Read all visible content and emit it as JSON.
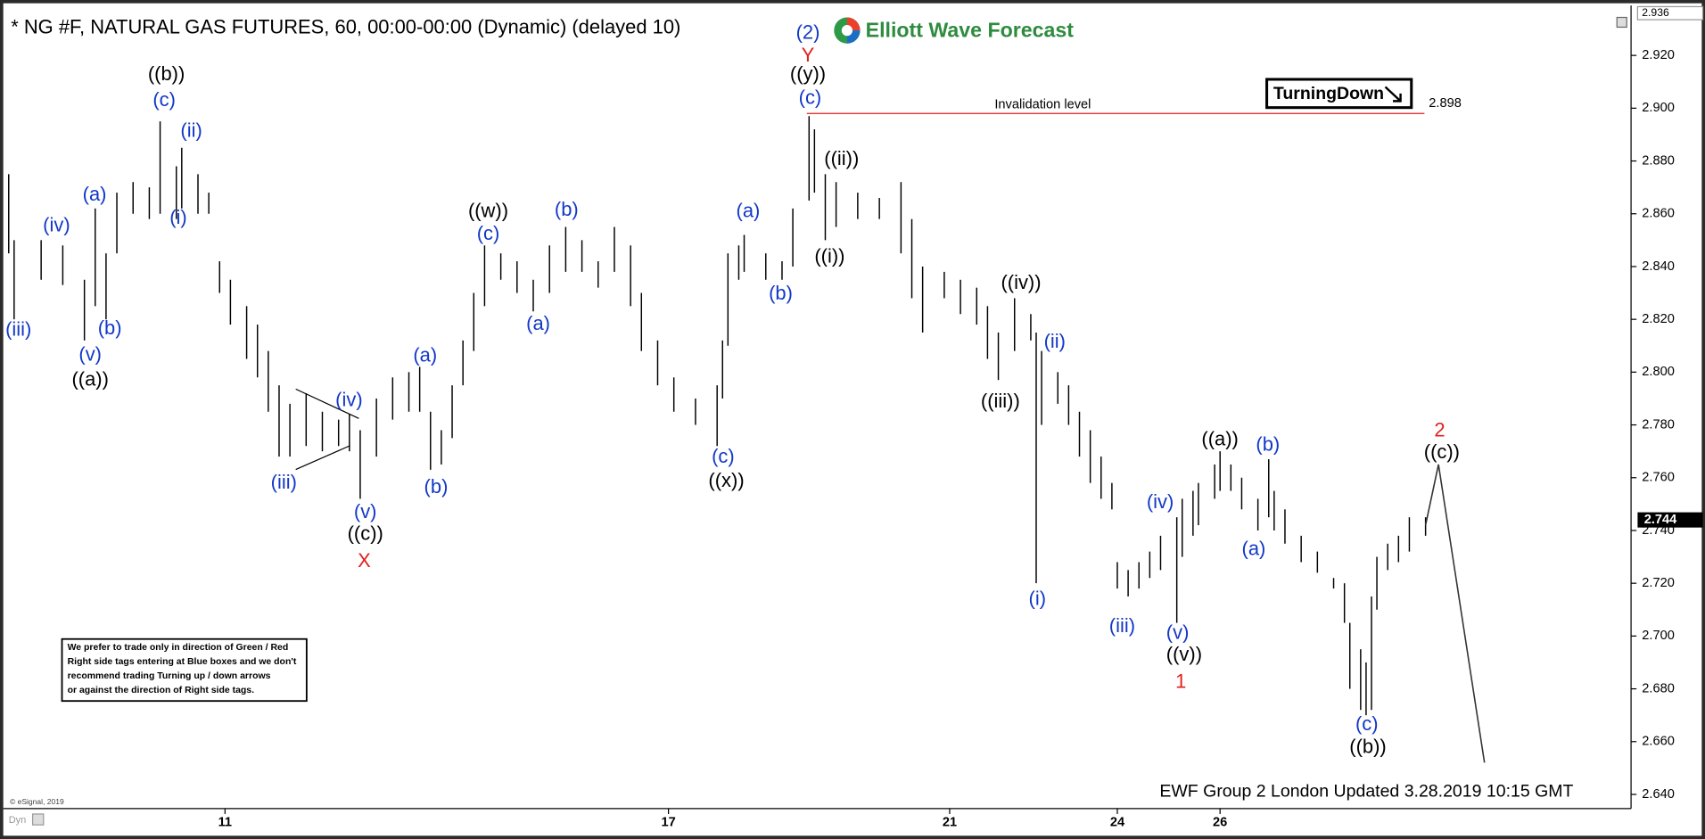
{
  "chart_data": {
    "type": "ohlc",
    "title": "* NG #F, NATURAL GAS FUTURES, 60, 00:00-00:00 (Dynamic) (delayed 10)",
    "logo": "Elliott Wave Forecast",
    "tag": "TurningDown",
    "footer": "EWF Group 2 London Updated 3.28.2019 10:15 GMT",
    "copyright": "© eSignal, 2019",
    "dyn": "Dyn",
    "disclaimer": [
      "We prefer to trade only in direction of Green / Red",
      "Right side tags entering at Blue boxes and we don't",
      "recommend trading Turning up / down arrows",
      "or against the direction of Right side tags."
    ],
    "xlim": [
      0,
      300
    ],
    "xticks": [
      {
        "value": 40,
        "label": "11"
      },
      {
        "value": 122,
        "label": "17"
      },
      {
        "value": 174,
        "label": "21"
      },
      {
        "value": 205,
        "label": "24"
      },
      {
        "value": 224,
        "label": "26"
      }
    ],
    "ylim": [
      2.635,
      2.937
    ],
    "yticks": [
      {
        "value": 2.64,
        "label": "2.640"
      },
      {
        "value": 2.66,
        "label": "2.660"
      },
      {
        "value": 2.68,
        "label": "2.680"
      },
      {
        "value": 2.7,
        "label": "2.700"
      },
      {
        "value": 2.72,
        "label": "2.720"
      },
      {
        "value": 2.74,
        "label": "2.740"
      },
      {
        "value": 2.76,
        "label": "2.760"
      },
      {
        "value": 2.78,
        "label": "2.780"
      },
      {
        "value": 2.8,
        "label": "2.800"
      },
      {
        "value": 2.82,
        "label": "2.820"
      },
      {
        "value": 2.84,
        "label": "2.840"
      },
      {
        "value": 2.86,
        "label": "2.860"
      },
      {
        "value": 2.88,
        "label": "2.880"
      },
      {
        "value": 2.9,
        "label": "2.900"
      },
      {
        "value": 2.92,
        "label": "2.920"
      }
    ],
    "axis_top": 2.936,
    "last_price": 2.744,
    "invalidation": {
      "label": "Invalidation level",
      "value": 2.898,
      "color": "#e0201b"
    },
    "bars": {
      "color": "#000000",
      "x": [
        0,
        1,
        6,
        10,
        14,
        16,
        18,
        20,
        23,
        26,
        28,
        31,
        32,
        35,
        37,
        39,
        41,
        44,
        46,
        48,
        50,
        52,
        55,
        58,
        61,
        63,
        65,
        68,
        71,
        74,
        76,
        78,
        80,
        82,
        84,
        86,
        88,
        91,
        94,
        97,
        100,
        103,
        106,
        109,
        112,
        115,
        117,
        120,
        123,
        127,
        131,
        132,
        133,
        135,
        136,
        140,
        143,
        145,
        148,
        149,
        151,
        153,
        157,
        161,
        165,
        167,
        169,
        173,
        176,
        179,
        181,
        183,
        186,
        189,
        190,
        191,
        194,
        196,
        198,
        200,
        202,
        204,
        205,
        207,
        209,
        211,
        213,
        216,
        217,
        219,
        220,
        223,
        224,
        226,
        228,
        231,
        233,
        234,
        236,
        239,
        242,
        245,
        247,
        248,
        250,
        251,
        252,
        253,
        255,
        257,
        259,
        262
      ],
      "high": [
        2.875,
        2.85,
        2.85,
        2.848,
        2.835,
        2.862,
        2.845,
        2.868,
        2.872,
        2.87,
        2.895,
        2.878,
        2.885,
        2.875,
        2.868,
        2.842,
        2.835,
        2.825,
        2.818,
        2.808,
        2.795,
        2.788,
        2.792,
        2.785,
        2.782,
        2.784,
        2.778,
        2.79,
        2.798,
        2.8,
        2.802,
        2.785,
        2.778,
        2.795,
        2.812,
        2.83,
        2.848,
        2.845,
        2.842,
        2.835,
        2.848,
        2.855,
        2.85,
        2.842,
        2.855,
        2.848,
        2.83,
        2.812,
        2.798,
        2.79,
        2.795,
        2.812,
        2.845,
        2.848,
        2.852,
        2.845,
        2.842,
        2.862,
        2.897,
        2.892,
        2.875,
        2.872,
        2.868,
        2.866,
        2.872,
        2.858,
        2.84,
        2.838,
        2.835,
        2.832,
        2.825,
        2.815,
        2.828,
        2.822,
        2.815,
        2.808,
        2.8,
        2.795,
        2.785,
        2.778,
        2.768,
        2.758,
        2.728,
        2.725,
        2.728,
        2.732,
        2.738,
        2.745,
        2.752,
        2.755,
        2.758,
        2.765,
        2.77,
        2.765,
        2.76,
        2.752,
        2.767,
        2.755,
        2.748,
        2.738,
        2.732,
        2.722,
        2.72,
        2.705,
        2.695,
        2.69,
        2.715,
        2.73,
        2.735,
        2.738,
        2.745,
        2.745
      ],
      "low": [
        2.845,
        2.82,
        2.835,
        2.833,
        2.812,
        2.825,
        2.82,
        2.845,
        2.86,
        2.858,
        2.86,
        2.858,
        2.862,
        2.86,
        2.86,
        2.83,
        2.818,
        2.805,
        2.798,
        2.785,
        2.768,
        2.768,
        2.772,
        2.77,
        2.772,
        2.77,
        2.752,
        2.768,
        2.782,
        2.785,
        2.785,
        2.763,
        2.765,
        2.775,
        2.795,
        2.808,
        2.825,
        2.835,
        2.83,
        2.823,
        2.83,
        2.838,
        2.838,
        2.832,
        2.838,
        2.825,
        2.808,
        2.795,
        2.785,
        2.78,
        2.772,
        2.79,
        2.81,
        2.835,
        2.838,
        2.835,
        2.835,
        2.84,
        2.865,
        2.868,
        2.85,
        2.855,
        2.858,
        2.858,
        2.845,
        2.828,
        2.815,
        2.828,
        2.822,
        2.818,
        2.805,
        2.797,
        2.808,
        2.812,
        2.72,
        2.78,
        2.788,
        2.78,
        2.768,
        2.758,
        2.752,
        2.748,
        2.718,
        2.715,
        2.718,
        2.722,
        2.725,
        2.705,
        2.73,
        2.738,
        2.742,
        2.752,
        2.755,
        2.755,
        2.748,
        2.74,
        2.745,
        2.74,
        2.735,
        2.728,
        2.724,
        2.718,
        2.705,
        2.68,
        2.672,
        2.67,
        2.672,
        2.71,
        2.725,
        2.728,
        2.732,
        2.738
      ]
    },
    "projection": {
      "color": "#333333",
      "x": [
        262,
        264.4,
        272.9
      ],
      "values": [
        2.742,
        2.765,
        2.652
      ]
    },
    "wave_labels": [
      {
        "text": "((b))",
        "color": "#000000"
      },
      {
        "text": "(c)",
        "color": "#1238c8"
      },
      {
        "text": "(ii)",
        "color": "#1238c8"
      },
      {
        "text": "(i)",
        "color": "#1238c8"
      },
      {
        "text": "(a)",
        "color": "#1238c8"
      },
      {
        "text": "(iv)",
        "color": "#1238c8"
      },
      {
        "text": "(iii)",
        "color": "#1238c8"
      },
      {
        "text": "(b)",
        "color": "#1238c8"
      },
      {
        "text": "(v)",
        "color": "#1238c8"
      },
      {
        "text": "((a))",
        "color": "#000000"
      },
      {
        "text": "(iv)",
        "color": "#1238c8"
      },
      {
        "text": "(iii)",
        "color": "#1238c8"
      },
      {
        "text": "(v)",
        "color": "#1238c8"
      },
      {
        "text": "((c))",
        "color": "#000000"
      },
      {
        "text": "X",
        "color": "#e0201b"
      },
      {
        "text": "(a)",
        "color": "#1238c8"
      },
      {
        "text": "(b)",
        "color": "#1238c8"
      },
      {
        "text": "((w))",
        "color": "#000000"
      },
      {
        "text": "(c)",
        "color": "#1238c8"
      },
      {
        "text": "(b)",
        "color": "#1238c8"
      },
      {
        "text": "(a)",
        "color": "#1238c8"
      },
      {
        "text": "(c)",
        "color": "#1238c8"
      },
      {
        "text": "((x))",
        "color": "#000000"
      },
      {
        "text": "(a)",
        "color": "#1238c8"
      },
      {
        "text": "(b)",
        "color": "#1238c8"
      },
      {
        "text": "(2)",
        "color": "#1238c8"
      },
      {
        "text": "Y",
        "color": "#e0201b"
      },
      {
        "text": "((y))",
        "color": "#000000"
      },
      {
        "text": "(c)",
        "color": "#1238c8"
      },
      {
        "text": "((ii))",
        "color": "#000000"
      },
      {
        "text": "((i))",
        "color": "#000000"
      },
      {
        "text": "((iv))",
        "color": "#000000"
      },
      {
        "text": "((iii))",
        "color": "#000000"
      },
      {
        "text": "(ii)",
        "color": "#1238c8"
      },
      {
        "text": "(i)",
        "color": "#1238c8"
      },
      {
        "text": "(iii)",
        "color": "#1238c8"
      },
      {
        "text": "(iv)",
        "color": "#1238c8"
      },
      {
        "text": "(v)",
        "color": "#1238c8"
      },
      {
        "text": "((v))",
        "color": "#000000"
      },
      {
        "text": "1",
        "color": "#e0201b"
      },
      {
        "text": "((a))",
        "color": "#000000"
      },
      {
        "text": "(b)",
        "color": "#1238c8"
      },
      {
        "text": "(a)",
        "color": "#1238c8"
      },
      {
        "text": "(c)",
        "color": "#1238c8"
      },
      {
        "text": "((b))",
        "color": "#000000"
      },
      {
        "text": "2",
        "color": "#e0201b"
      },
      {
        "text": "((c))",
        "color": "#000000"
      }
    ]
  }
}
